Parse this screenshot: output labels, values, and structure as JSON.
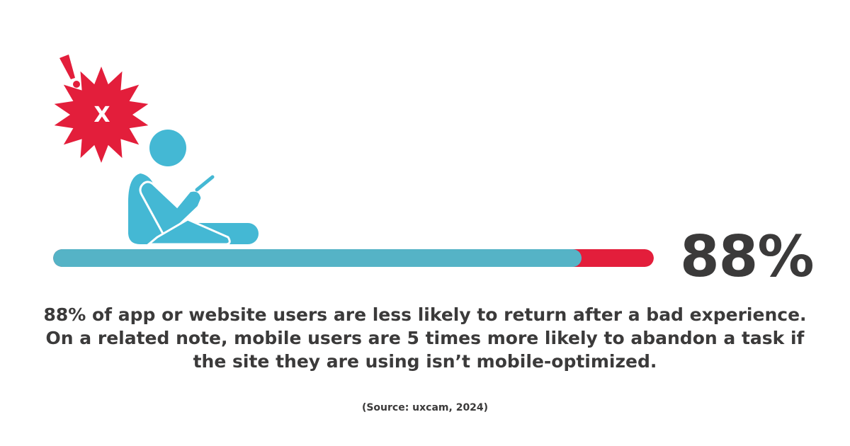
{
  "stat": {
    "value_label": "88%",
    "fraction": 0.88,
    "description": "88% of app or website users are less likely to return after a bad experience. On a related note, mobile users are 5 times more likely to abandon a task if the site they are using isn’t mobile-optimized.",
    "source": "(Source: uxcam, 2024)"
  },
  "illustration": {
    "burst_symbol": "X",
    "icons": [
      "exclamation-icon",
      "error-burst-icon",
      "person-with-phone-icon"
    ]
  },
  "colors": {
    "fill": "#55b3c6",
    "remainder": "#e31e3b",
    "figure": "#44b8d4",
    "burst": "#e31e3b",
    "text": "#3b3a3a"
  }
}
